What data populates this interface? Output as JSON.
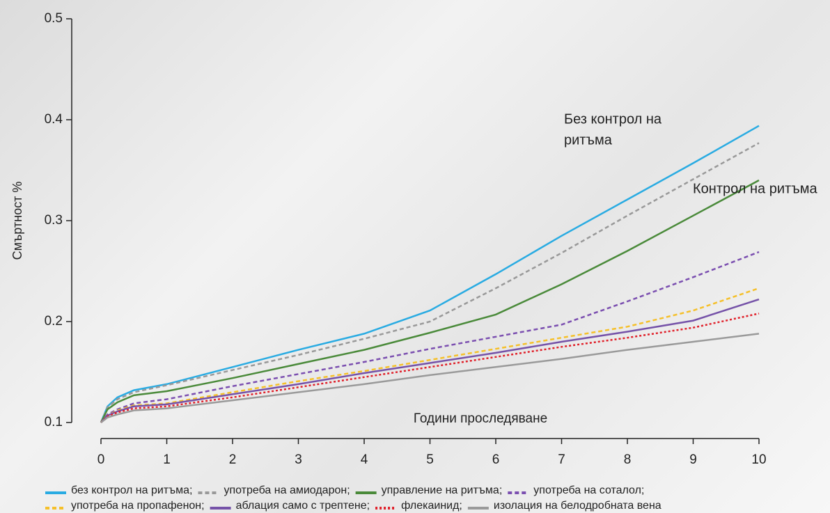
{
  "chart_data": {
    "type": "line",
    "x_label": "Години проследяване",
    "y_label": "Смъртност %",
    "annotations": [
      [
        "Без контрол на",
        "ритъма"
      ],
      [
        "Контрол на ритъма"
      ]
    ],
    "x": [
      0,
      0.1,
      0.25,
      0.5,
      1,
      2,
      3,
      4,
      5,
      6,
      7,
      8,
      9,
      10
    ],
    "xlim": [
      0,
      10
    ],
    "xticks": [
      0,
      1,
      2,
      3,
      4,
      5,
      6,
      7,
      8,
      9,
      10
    ],
    "ylim": [
      0.1,
      0.5
    ],
    "yticks": [
      0.1,
      0.2,
      0.3,
      0.4,
      0.5
    ],
    "series": [
      {
        "name": "без контрол на ритъма;",
        "color": "#29abe2",
        "dash": "solid",
        "values": [
          0.1,
          0.116,
          0.125,
          0.132,
          0.138,
          0.155,
          0.172,
          0.188,
          0.211,
          0.247,
          0.285,
          0.321,
          0.357,
          0.394
        ]
      },
      {
        "name": "употреба на амиодарон;",
        "color": "#999999",
        "dash": "dashed",
        "values": [
          0.1,
          0.115,
          0.123,
          0.13,
          0.137,
          0.152,
          0.167,
          0.183,
          0.2,
          0.233,
          0.268,
          0.305,
          0.341,
          0.377
        ]
      },
      {
        "name": "управление на ритъма;",
        "color": "#4a8a3a",
        "dash": "solid",
        "values": [
          0.1,
          0.113,
          0.12,
          0.127,
          0.131,
          0.144,
          0.158,
          0.172,
          0.189,
          0.207,
          0.237,
          0.27,
          0.305,
          0.34
        ]
      },
      {
        "name": "употреба на соталол;",
        "color": "#7b4fb0",
        "dash": "dashed",
        "values": [
          0.1,
          0.108,
          0.113,
          0.119,
          0.123,
          0.136,
          0.148,
          0.16,
          0.173,
          0.185,
          0.197,
          0.22,
          0.244,
          0.269
        ]
      },
      {
        "name": "употреба на пропафенон;",
        "color": "#f5c02a",
        "dash": "dashed",
        "values": [
          0.1,
          0.107,
          0.112,
          0.117,
          0.119,
          0.13,
          0.141,
          0.151,
          0.162,
          0.173,
          0.184,
          0.195,
          0.211,
          0.233
        ]
      },
      {
        "name": "аблация само с трептене;",
        "color": "#7552a8",
        "dash": "solid",
        "values": [
          0.1,
          0.107,
          0.111,
          0.116,
          0.118,
          0.128,
          0.138,
          0.149,
          0.159,
          0.169,
          0.18,
          0.19,
          0.201,
          0.222
        ]
      },
      {
        "name": "флекаинид;",
        "color": "#e0202a",
        "dash": "dotted",
        "values": [
          0.1,
          0.106,
          0.11,
          0.114,
          0.116,
          0.125,
          0.135,
          0.145,
          0.155,
          0.165,
          0.175,
          0.184,
          0.194,
          0.208
        ]
      },
      {
        "name": "изолация на белодробната вена",
        "color": "#9a9a9a",
        "dash": "solid",
        "values": [
          0.1,
          0.105,
          0.108,
          0.112,
          0.114,
          0.122,
          0.13,
          0.138,
          0.147,
          0.155,
          0.163,
          0.172,
          0.18,
          0.188
        ]
      }
    ]
  }
}
